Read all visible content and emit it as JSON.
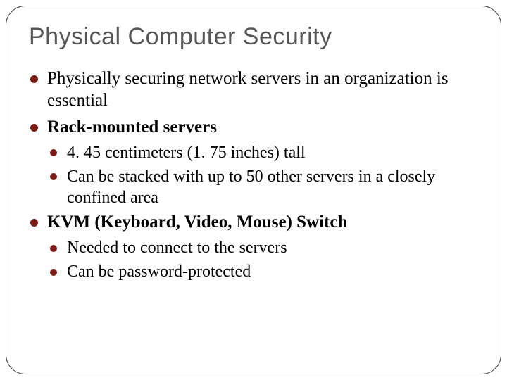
{
  "slide": {
    "title": "Physical Computer Security",
    "title_color": "#565656",
    "title_fontsize": 34,
    "title_font": "Arial",
    "bullet_color": "#7a1b14",
    "body_font": "Georgia",
    "body_color": "#000000",
    "border_color": "#333333",
    "border_radius": 28,
    "background_color": "#ffffff",
    "items": [
      {
        "level": 1,
        "text": "Physically securing network servers in an organization is essential",
        "bold": false
      },
      {
        "level": 1,
        "text": "Rack-mounted servers",
        "bold": true
      },
      {
        "level": 2,
        "text": "4. 45 centimeters (1. 75 inches) tall",
        "bold": false
      },
      {
        "level": 2,
        "text": "Can be stacked with up to 50 other servers in a closely confined area",
        "bold": false
      },
      {
        "level": 1,
        "text": "KVM (Keyboard,  Video,  Mouse) Switch",
        "bold": true
      },
      {
        "level": 2,
        "text": "Needed to connect to the servers",
        "bold": false
      },
      {
        "level": 2,
        "text": "Can be password-protected",
        "bold": false
      }
    ]
  }
}
